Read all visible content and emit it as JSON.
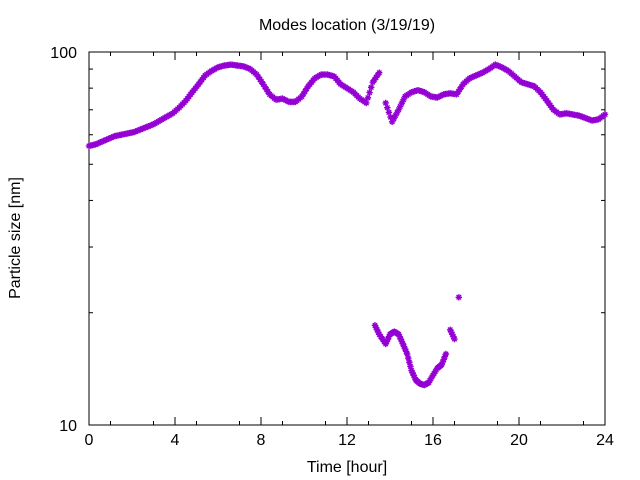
{
  "chart_data": {
    "type": "scatter",
    "title": "Modes location (3/19/19)",
    "xlabel": "Time [hour]",
    "ylabel": "Particle size [nm]",
    "xlim": [
      0,
      24
    ],
    "ylim": [
      10,
      100
    ],
    "yscale": "log",
    "xticks": [
      0,
      4,
      8,
      12,
      16,
      20,
      24
    ],
    "yticks": [
      10,
      100
    ],
    "grid": false,
    "marker_color": "#9400d3",
    "series": [
      {
        "mode": "primary",
        "x": [
          0.0,
          0.3,
          0.6,
          0.9,
          1.2,
          1.5,
          1.8,
          2.1,
          2.4,
          2.7,
          3.0,
          3.3,
          3.6,
          3.9,
          4.2,
          4.5,
          4.8,
          5.1,
          5.4,
          5.7,
          6.0,
          6.3,
          6.6,
          6.9,
          7.2,
          7.5,
          7.8,
          8.1,
          8.4,
          8.7,
          9.0,
          9.3,
          9.6,
          9.9,
          10.2,
          10.5,
          10.8,
          11.1,
          11.4,
          11.7,
          12.0,
          12.3,
          12.6,
          12.9,
          13.2,
          13.5,
          13.8,
          14.1,
          14.4,
          14.7,
          15.0,
          15.3,
          15.6,
          15.9,
          16.2,
          16.5,
          16.8,
          17.1,
          17.4,
          17.7,
          18.0,
          18.3,
          18.6,
          18.9,
          19.2,
          19.5,
          19.8,
          20.1,
          20.4,
          20.7,
          21.0,
          21.3,
          21.6,
          21.9,
          22.2,
          22.5,
          22.8,
          23.1,
          23.4,
          23.7,
          24.0
        ],
        "y": [
          56.0,
          56.5,
          57.5,
          58.5,
          59.5,
          60.0,
          60.5,
          61.0,
          62.0,
          63.0,
          64.0,
          65.5,
          67.0,
          68.5,
          71.0,
          74.0,
          78.0,
          82.0,
          86.5,
          89.0,
          91.0,
          92.0,
          92.5,
          92.0,
          91.5,
          90.0,
          87.0,
          82.0,
          77.0,
          74.5,
          75.0,
          73.5,
          73.5,
          76.0,
          81.0,
          85.0,
          87.0,
          87.0,
          86.0,
          82.0,
          80.0,
          78.0,
          75.0,
          73.0,
          83.0,
          88.0,
          73.0,
          65.0,
          70.0,
          76.0,
          78.0,
          79.0,
          78.0,
          76.0,
          75.5,
          77.0,
          77.5,
          77.0,
          82.0,
          85.0,
          86.5,
          88.0,
          90.0,
          92.5,
          91.0,
          89.0,
          86.0,
          83.0,
          82.0,
          81.0,
          78.0,
          74.0,
          70.0,
          68.0,
          68.5,
          68.0,
          67.5,
          66.5,
          65.5,
          66.0,
          68.0
        ]
      },
      {
        "mode": "secondary",
        "x": [
          13.3,
          13.5,
          13.8,
          14.0,
          14.2,
          14.4,
          14.6,
          14.8,
          15.0,
          15.2,
          15.4,
          15.6,
          15.8,
          16.0,
          16.2,
          16.4,
          16.6,
          16.8,
          17.0,
          17.2
        ],
        "y": [
          18.5,
          17.5,
          16.5,
          17.5,
          17.8,
          17.5,
          16.5,
          15.5,
          14.0,
          13.2,
          12.9,
          12.8,
          13.0,
          13.6,
          14.2,
          14.5,
          15.5,
          18.0,
          17.0,
          22.0
        ]
      }
    ]
  }
}
